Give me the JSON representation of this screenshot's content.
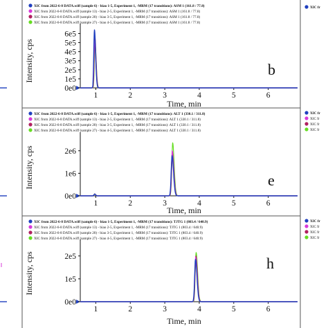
{
  "figure": {
    "side_legend_stub": "XIC fr",
    "panels": [
      {
        "letter": "b",
        "legend": [
          "XIC from 2022-6-8 DATA.wiff (sample 6) - biao 1-5, Experiment 1, -MRM (17 transitions): ASM 1 (161.8 / 77.8)",
          "XIC from 2022-6-8 DATA.wiff (sample 13) - biao 2-5, Experiment 1, -MRM (17 transitions): ASM 1 (161.8 / 77.8)",
          "XIC from 2022-6-8 DATA.wiff (sample 20) - biao 3-5, Experiment 1, -MRM (17 transitions): ASM 1 (161.8 / 77.8)",
          "XIC from 2022-6-8 DATA.wiff (sample 27) - biao 4-5, Experiment 1, -MRM (17 transitions): ASM 1 (161.8 / 77.8)"
        ],
        "ylabel": "Intensity, cps",
        "xlabel": "Time, min",
        "yticks": [
          "0e0",
          "1e5",
          "2e5",
          "3e5",
          "4e5",
          "5e5",
          "6e5"
        ],
        "xticks": [
          "1",
          "2",
          "3",
          "4",
          "5",
          "6"
        ]
      },
      {
        "letter": "e",
        "legend": [
          "XIC from 2022-6-8 DATA.wiff (sample 6) - biao 1-5, Experiment 1, -MRM (17 transitions): ALT 1 (330.1 / 311.8)",
          "XIC from 2022-6-8 DATA.wiff (sample 13) - biao 2-5, Experiment 1, -MRM (17 transitions): ALT 1 (330.1 / 311.8)",
          "XIC from 2022-6-8 DATA.wiff (sample 20) - biao 3-5, Experiment 1, -MRM (17 transitions): ALT 1 (330.1 / 311.8)",
          "XIC from 2022-6-8 DATA.wiff (sample 27) - biao 4-5, Experiment 1, -MRM (17 transitions): ALT 1 (330.1 / 311.8)"
        ],
        "ylabel": "Intensity, cps",
        "xlabel": "Time, min",
        "yticks": [
          "0e0",
          "1e6",
          "2e6"
        ],
        "xticks": [
          "1",
          "2",
          "3",
          "4",
          "5",
          "6"
        ]
      },
      {
        "letter": "h",
        "legend": [
          "XIC from 2022-6-8 DATA.wiff (sample 6) - biao 1-5, Experiment 1, -MRM (17 transitions): TJTG 1 (803.4 / 640.9)",
          "XIC from 2022-6-8 DATA.wiff (sample 13) - biao 2-5, Experiment 1, -MRM (17 transitions): TJTG 1 (803.4 / 640.9)",
          "XIC from 2022-6-8 DATA.wiff (sample 20) - biao 3-5, Experiment 1, -MRM (17 transitions): TJTG 1 (803.4 / 640.9)",
          "XIC from 2022-6-8 DATA.wiff (sample 27) - biao 4-5, Experiment 1, -MRM (17 transitions): TJTG 1 (803.4 / 640.9)"
        ],
        "ylabel": "Intensity, cps",
        "xlabel": "Time, min",
        "yticks": [
          "0e0",
          "1e5",
          "2e5"
        ],
        "xticks": [
          "1",
          "2",
          "3",
          "4",
          "5",
          "6"
        ]
      }
    ]
  },
  "chart_data": [
    {
      "type": "line",
      "ylabel": "Intensity, cps",
      "xlabel": "Time, min",
      "xlim": [
        0.55,
        6.85
      ],
      "ylim": [
        0,
        680000
      ],
      "peak_x": 0.97,
      "peak_width": 0.035,
      "series_colors": [
        "#1f3fbf",
        "#d93ad9",
        "#b02060",
        "#66dd22"
      ],
      "series": [
        {
          "peak": 640000
        },
        {
          "peak": 520000
        },
        {
          "peak": 560000
        },
        {
          "peak": 480000
        }
      ]
    },
    {
      "type": "line",
      "ylabel": "Intensity, cps",
      "xlabel": "Time, min",
      "xlim": [
        0.55,
        6.85
      ],
      "ylim": [
        0,
        2700000
      ],
      "peak_x": 3.22,
      "peak_width": 0.045,
      "minor_peak": {
        "x": 0.97,
        "y": 95000
      },
      "series_colors": [
        "#1f3fbf",
        "#d93ad9",
        "#b02060",
        "#66dd22"
      ],
      "series": [
        {
          "peak": 1780000
        },
        {
          "peak": 2000000
        },
        {
          "peak": 1900000
        },
        {
          "peak": 2350000
        }
      ]
    },
    {
      "type": "line",
      "ylabel": "Intensity, cps",
      "xlabel": "Time, min",
      "xlim": [
        0.55,
        6.85
      ],
      "ylim": [
        0,
        260000
      ],
      "peak_x": 3.9,
      "peak_width": 0.045,
      "series_colors": [
        "#1f3fbf",
        "#d93ad9",
        "#b02060",
        "#66dd22"
      ],
      "series": [
        {
          "peak": 185000
        },
        {
          "peak": 195000
        },
        {
          "peak": 200000
        },
        {
          "peak": 215000
        }
      ]
    }
  ]
}
